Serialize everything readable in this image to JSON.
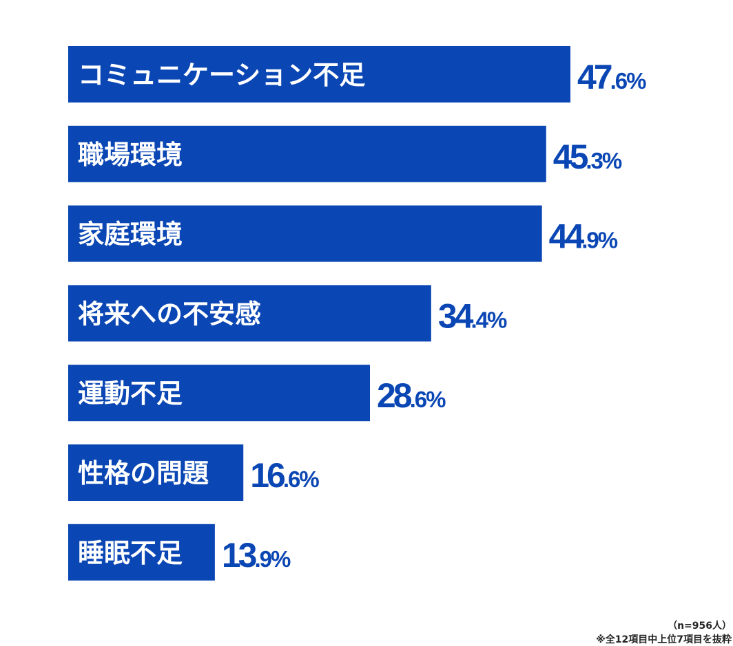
{
  "chart_data": {
    "type": "bar",
    "orientation": "horizontal",
    "categories": [
      "コミュニケーション不足",
      "職場環境",
      "家庭環境",
      "将来への不安感",
      "運動不足",
      "性格の問題",
      "睡眠不足"
    ],
    "values": [
      47.6,
      45.3,
      44.9,
      34.4,
      28.6,
      16.6,
      13.9
    ],
    "value_labels": [
      {
        "int": "47",
        "dec": ".6%"
      },
      {
        "int": "45",
        "dec": ".3%"
      },
      {
        "int": "44",
        "dec": ".9%"
      },
      {
        "int": "34",
        "dec": ".4%"
      },
      {
        "int": "28",
        "dec": ".6%"
      },
      {
        "int": "16",
        "dec": ".6%"
      },
      {
        "int": "13",
        "dec": ".9%"
      }
    ],
    "xlim": [
      0,
      47.6
    ],
    "grid": false,
    "legend": "none"
  },
  "notes": {
    "sample": "（n=956人）",
    "footnote": "※全12項目中上位7項目を抜粋"
  },
  "colors": {
    "bar": "#0a46b4",
    "bar_label_text": "#ffffff",
    "value_text": "#0a46b4"
  }
}
